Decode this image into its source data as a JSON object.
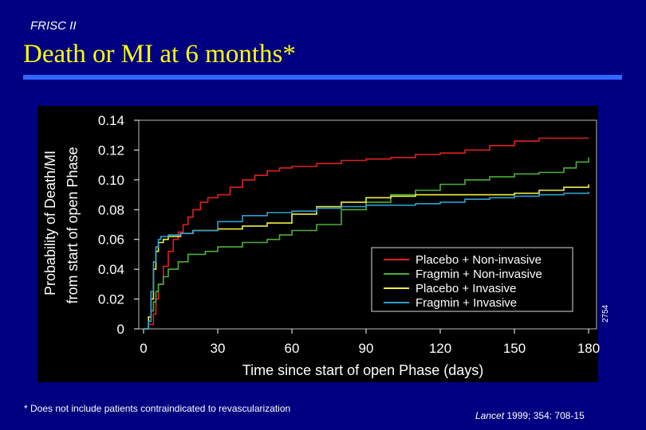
{
  "header_label": "FRISC II",
  "slide_title": "Death or MI at 6 months*",
  "footnote": "* Does not include patients contraindicated to revascularization",
  "citation": {
    "journal": "Lancet",
    "rest": " 1999; 354: 708-15"
  },
  "side_code": "2754",
  "colors": {
    "background": "#000080",
    "title": "#ffff00",
    "rule": "#3366ff",
    "plot_bg": "#000000"
  },
  "chart_data": {
    "type": "line",
    "step": true,
    "xlabel": "Time since start of open Phase (days)",
    "ylabel_lines": [
      "Probability of Death/MI",
      "from start of open Phase"
    ],
    "xlim": [
      0,
      180
    ],
    "ylim": [
      0,
      0.14
    ],
    "xticks": [
      0,
      30,
      60,
      90,
      120,
      150,
      180
    ],
    "yticks": [
      0,
      0.02,
      0.04,
      0.06,
      0.08,
      0.1,
      0.12,
      0.14
    ],
    "ytick_labels": [
      "0",
      "0.02",
      "0.04",
      "0.06",
      "0.08",
      "0.10",
      "0.12",
      "0.14"
    ],
    "legend_position": "bottom-right",
    "series": [
      {
        "name": "Placebo + Non-invasive",
        "color": "#e02020",
        "x": [
          0,
          2,
          4,
          5,
          6,
          8,
          10,
          12,
          14,
          16,
          18,
          20,
          23,
          26,
          30,
          35,
          40,
          45,
          50,
          55,
          60,
          70,
          80,
          90,
          100,
          110,
          120,
          130,
          140,
          150,
          160,
          170,
          180
        ],
        "y": [
          0,
          0.003,
          0.01,
          0.02,
          0.03,
          0.042,
          0.052,
          0.06,
          0.065,
          0.07,
          0.075,
          0.08,
          0.085,
          0.088,
          0.09,
          0.095,
          0.1,
          0.103,
          0.106,
          0.108,
          0.109,
          0.111,
          0.113,
          0.114,
          0.115,
          0.117,
          0.118,
          0.12,
          0.123,
          0.126,
          0.128,
          0.128,
          0.128
        ]
      },
      {
        "name": "Fragmin + Non-invasive",
        "color": "#4caf3a",
        "x": [
          0,
          2,
          3,
          4,
          5,
          6,
          8,
          10,
          14,
          18,
          25,
          30,
          40,
          50,
          55,
          60,
          70,
          80,
          90,
          100,
          110,
          120,
          130,
          140,
          150,
          160,
          170,
          175,
          180
        ],
        "y": [
          0,
          0.005,
          0.012,
          0.018,
          0.025,
          0.03,
          0.035,
          0.04,
          0.045,
          0.05,
          0.052,
          0.055,
          0.058,
          0.06,
          0.063,
          0.066,
          0.07,
          0.08,
          0.085,
          0.09,
          0.093,
          0.097,
          0.1,
          0.102,
          0.104,
          0.105,
          0.108,
          0.112,
          0.115
        ]
      },
      {
        "name": "Placebo + Invasive",
        "color": "#f0f040",
        "x": [
          0,
          2,
          3,
          4,
          5,
          6,
          8,
          10,
          15,
          20,
          30,
          40,
          50,
          60,
          70,
          80,
          90,
          100,
          110,
          120,
          130,
          140,
          150,
          160,
          170,
          180
        ],
        "y": [
          0,
          0.008,
          0.02,
          0.04,
          0.052,
          0.058,
          0.06,
          0.062,
          0.064,
          0.066,
          0.067,
          0.069,
          0.071,
          0.077,
          0.082,
          0.085,
          0.088,
          0.089,
          0.09,
          0.09,
          0.09,
          0.09,
          0.091,
          0.093,
          0.095,
          0.097
        ]
      },
      {
        "name": "Fragmin + Invasive",
        "color": "#30a0d0",
        "x": [
          0,
          2,
          3,
          4,
          5,
          6,
          7,
          10,
          15,
          20,
          30,
          40,
          50,
          60,
          70,
          80,
          90,
          100,
          110,
          120,
          130,
          140,
          150,
          160,
          170,
          180
        ],
        "y": [
          0,
          0.005,
          0.025,
          0.045,
          0.055,
          0.06,
          0.062,
          0.063,
          0.064,
          0.066,
          0.072,
          0.076,
          0.078,
          0.079,
          0.081,
          0.082,
          0.083,
          0.083,
          0.084,
          0.085,
          0.087,
          0.088,
          0.089,
          0.09,
          0.091,
          0.092
        ]
      }
    ]
  }
}
